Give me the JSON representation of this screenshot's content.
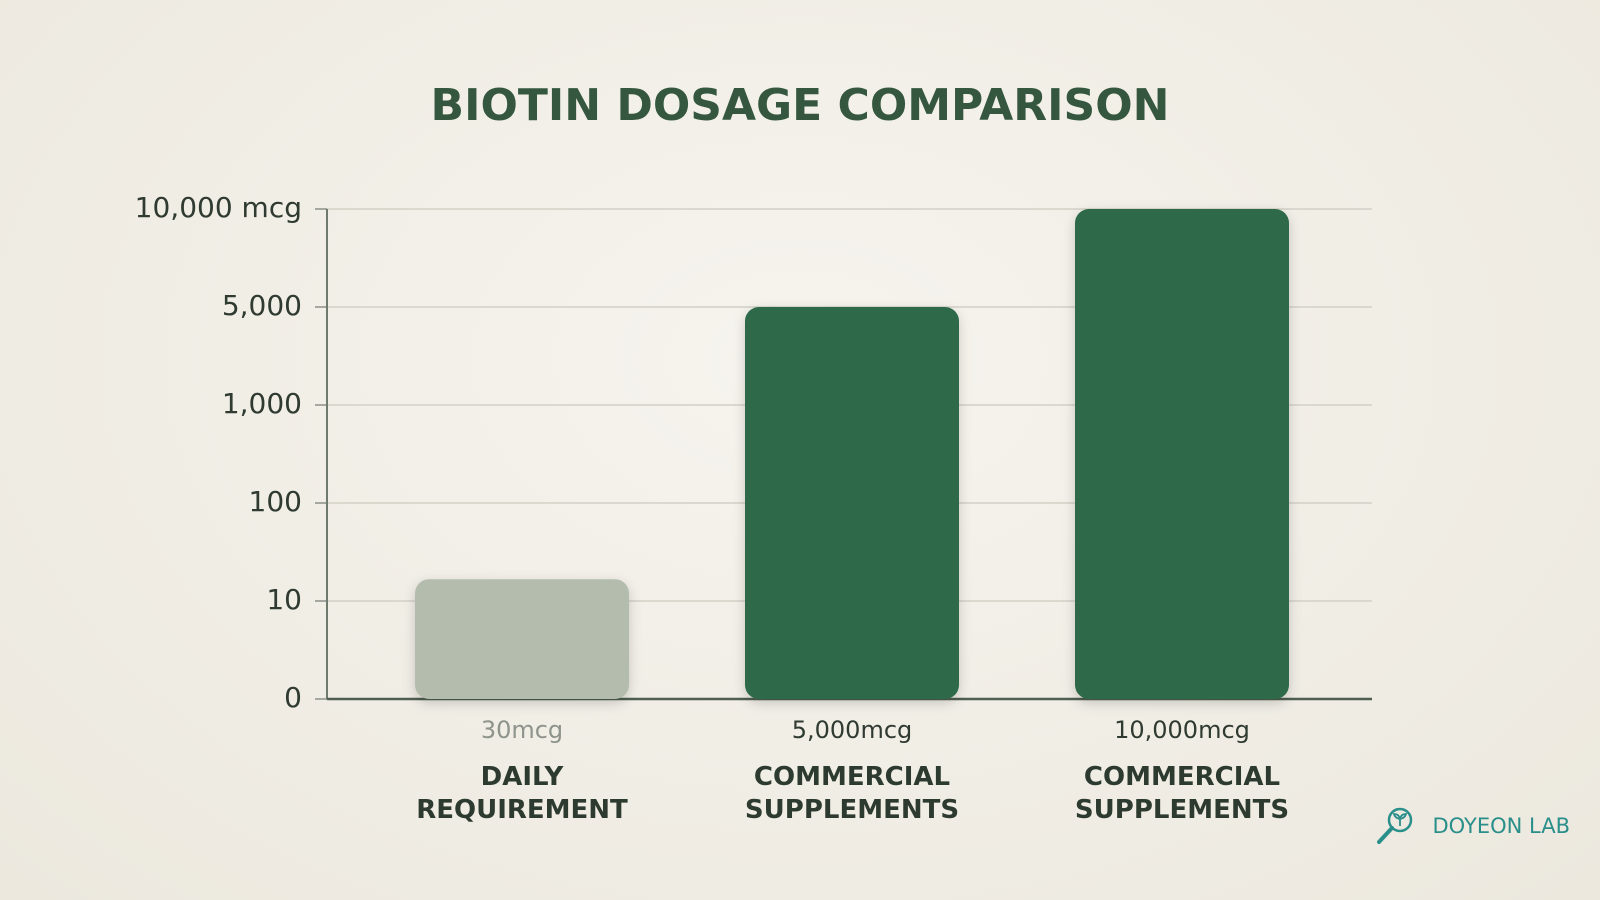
{
  "chart_data": {
    "type": "bar",
    "title": "BIOTIN DOSAGE COMPARISON",
    "categories": [
      "DAILY REQUIREMENT",
      "COMMERCIAL SUPPLEMENTS",
      "COMMERCIAL SUPPLEMENTS"
    ],
    "values": [
      30,
      5000,
      10000
    ],
    "value_labels": [
      "30mcg",
      "5,000mcg",
      "10,000mcg"
    ],
    "colors": [
      "#b3bcad",
      "#2e6b48",
      "#2e6b48"
    ],
    "ylim": [
      0,
      10000
    ],
    "yticks": [
      0,
      10,
      100,
      {
        "value": 1000,
        "label": "1,000"
      },
      {
        "value": 5000,
        "label": "5,000"
      },
      {
        "value": 10000,
        "label": "10,000 mcg"
      }
    ],
    "grid": true
  },
  "brand": "DOYEON LAB"
}
